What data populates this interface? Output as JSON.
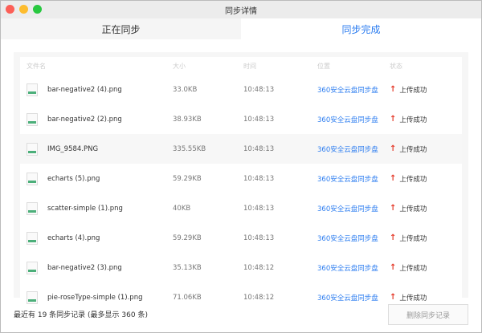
{
  "window": {
    "title": "同步详情"
  },
  "tabs": [
    {
      "label": "正在同步",
      "active": false
    },
    {
      "label": "同步完成",
      "active": true
    }
  ],
  "table": {
    "headers": [
      "文件名",
      "大小",
      "时间",
      "位置",
      "状态"
    ],
    "rows": [
      {
        "name": "bar-negative2 (4).png",
        "size": "33.0KB",
        "time": "10:48:13",
        "location": "360安全云盘同步盘",
        "status": "上传成功"
      },
      {
        "name": "bar-negative2 (2).png",
        "size": "38.93KB",
        "time": "10:48:13",
        "location": "360安全云盘同步盘",
        "status": "上传成功"
      },
      {
        "name": "IMG_9584.PNG",
        "size": "335.55KB",
        "time": "10:48:13",
        "location": "360安全云盘同步盘",
        "status": "上传成功"
      },
      {
        "name": "echarts (5).png",
        "size": "59.29KB",
        "time": "10:48:13",
        "location": "360安全云盘同步盘",
        "status": "上传成功"
      },
      {
        "name": "scatter-simple (1).png",
        "size": "40KB",
        "time": "10:48:13",
        "location": "360安全云盘同步盘",
        "status": "上传成功"
      },
      {
        "name": "echarts (4).png",
        "size": "59.29KB",
        "time": "10:48:13",
        "location": "360安全云盘同步盘",
        "status": "上传成功"
      },
      {
        "name": "bar-negative2 (3).png",
        "size": "35.13KB",
        "time": "10:48:12",
        "location": "360安全云盘同步盘",
        "status": "上传成功"
      },
      {
        "name": "pie-roseType-simple (1).png",
        "size": "71.06KB",
        "time": "10:48:12",
        "location": "360安全云盘同步盘",
        "status": "上传成功"
      }
    ]
  },
  "footer": {
    "summary": "最近有 19 条同步记录 (最多显示 360 条)",
    "delete_label": "删除同步记录"
  },
  "colors": {
    "accent": "#2b7cf0",
    "upload_arrow": "#e53b2b"
  }
}
